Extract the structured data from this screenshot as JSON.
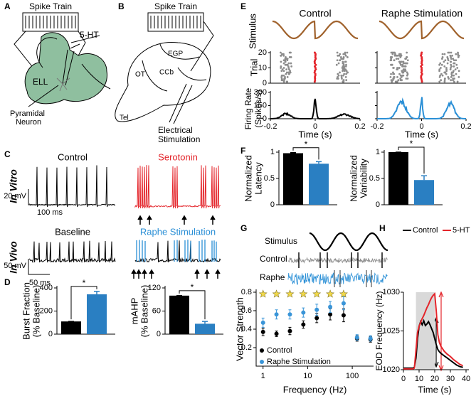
{
  "figure": {
    "A": {
      "label": "A",
      "spike_train": "Spike Train",
      "drug": "5-HT",
      "region": "ELL",
      "neuron": [
        "Pyramidal",
        "Neuron"
      ]
    },
    "B": {
      "label": "B",
      "spike_train": "Spike Train",
      "regions": [
        "EGP",
        "OT",
        "CCb",
        "Tel"
      ],
      "stimulation": [
        "Electrical",
        "Stimulation"
      ]
    },
    "C": {
      "label": "C",
      "in_vitro": "In Vitro",
      "in_vivo": "In Vivo",
      "control": "Control",
      "serotonin": "Serotonin",
      "baseline": "Baseline",
      "raphe": "Raphe Stimulation",
      "scale_vitro": [
        "20 mV",
        "100 ms"
      ],
      "scale_vivo": [
        "50 mV",
        "50 ms"
      ]
    },
    "D": {
      "label": "D"
    },
    "E": {
      "label": "E",
      "control": "Control",
      "raphe": "Raphe Stimulation",
      "stimulus": "Stimulus",
      "trial": "Trial",
      "rate": [
        "Firing Rate",
        "(Spikes/s)"
      ],
      "time": "Time (s)",
      "trial_ticks": [
        0,
        10,
        20
      ],
      "rate_ticks": [
        0,
        150,
        300
      ],
      "time_ticks": [
        -0.2,
        0,
        0.2
      ]
    },
    "F": {
      "label": "F"
    },
    "G": {
      "label": "G",
      "stimulus": "Stimulus",
      "control": "Control",
      "raphe": "Raphe"
    },
    "H": {
      "label": "H"
    }
  },
  "chart_data": [
    {
      "type": "bar",
      "ylabel": [
        "Burst Fraction",
        "(% Baseline)"
      ],
      "values": [
        110,
        345
      ],
      "errors": [
        0,
        25
      ],
      "colors": [
        "#000000",
        "#2a7fc2"
      ],
      "ylim": [
        0,
        400
      ],
      "yticks": [
        0,
        200,
        400
      ],
      "annotation": "*"
    },
    {
      "type": "bar",
      "ylabel": [
        "mAHP",
        "(% Baseline)"
      ],
      "values": [
        100,
        27
      ],
      "errors": [
        0,
        6
      ],
      "colors": [
        "#000000",
        "#2a7fc2"
      ],
      "ylim": [
        0,
        120
      ],
      "yticks": [
        0,
        60,
        120
      ],
      "annotation": "*"
    },
    {
      "type": "bar",
      "ylabel": [
        "Normalized",
        "Latency"
      ],
      "values": [
        0.98,
        0.78
      ],
      "errors": [
        0.01,
        0.04
      ],
      "colors": [
        "#000000",
        "#2a7fc2"
      ],
      "ylim": [
        0,
        1
      ],
      "yticks": [
        0,
        0.5,
        1
      ],
      "annotation": "*"
    },
    {
      "type": "bar",
      "ylabel": [
        "Normalized",
        "Variability"
      ],
      "values": [
        1.0,
        0.47
      ],
      "errors": [
        0,
        0.08
      ],
      "colors": [
        "#000000",
        "#2a7fc2"
      ],
      "ylim": [
        0,
        1
      ],
      "yticks": [
        0,
        0.5,
        1
      ],
      "annotation": "*"
    },
    {
      "type": "scatter",
      "ylabel": "Vector Strength",
      "xlabel": "Frequency (Hz)",
      "log_x": true,
      "x": [
        1,
        2,
        4,
        8,
        16,
        32,
        64,
        128,
        256
      ],
      "series": [
        {
          "name": "Control",
          "color": "#000000",
          "values": [
            0.37,
            0.35,
            0.38,
            0.45,
            0.52,
            0.56,
            0.55,
            0.3,
            0.29
          ],
          "errors": [
            0.04,
            0.03,
            0.04,
            0.04,
            0.05,
            0.06,
            0.07,
            0.03,
            0.03
          ]
        },
        {
          "name": "Raphe Stimulation",
          "color": "#3a95d8",
          "values": [
            0.47,
            0.56,
            0.56,
            0.58,
            0.61,
            0.64,
            0.68,
            0.31,
            0.3
          ],
          "errors": [
            0.05,
            0.05,
            0.05,
            0.05,
            0.06,
            0.06,
            0.07,
            0.03,
            0.03
          ]
        }
      ],
      "significance": {
        "color": "#f0d84a",
        "y": 0.78,
        "x": [
          1,
          2,
          4,
          8,
          16,
          32,
          64
        ]
      },
      "xlim": [
        0.7,
        300
      ],
      "xticks": [
        1,
        10,
        100
      ],
      "ylim": [
        0,
        0.8
      ],
      "yticks": [
        0.2,
        0.4,
        0.6,
        0.8
      ],
      "legend": "lower left"
    },
    {
      "type": "line",
      "ylabel": "EOD Frequency (Hz)",
      "xlabel": "Time (s)",
      "x": [
        0,
        2,
        4,
        6,
        7,
        8,
        9,
        10,
        11,
        12,
        13,
        14,
        15,
        16,
        17,
        18,
        19,
        20,
        21,
        22,
        23,
        24,
        26,
        28,
        30,
        32,
        34,
        36,
        38
      ],
      "series": [
        {
          "name": "Control",
          "color": "#000000",
          "values": [
            1020.2,
            1020.2,
            1020.2,
            1020.2,
            1020.3,
            1021.5,
            1024,
            1025.6,
            1026.2,
            1025.8,
            1026.3,
            1025.7,
            1025.9,
            1026.2,
            1025.8,
            1025.3,
            1024.8,
            1024,
            1023.2,
            1022.6,
            1022.3,
            1022.1,
            1021.8,
            1021.5,
            1021.2,
            1020.9,
            1020.6,
            1020.4,
            1020.3
          ]
        },
        {
          "name": "5-HT",
          "color": "#e4252b",
          "values": [
            1020.1,
            1020.1,
            1020.1,
            1020.1,
            1020.2,
            1022.5,
            1024.8,
            1025.6,
            1026.1,
            1026.6,
            1027,
            1027.5,
            1028,
            1028.4,
            1028.9,
            1029.3,
            1029.6,
            1029.8,
            1027.5,
            1024.5,
            1023.5,
            1023,
            1022.4,
            1022,
            1021.7,
            1021.3,
            1021,
            1020.7,
            1020.5
          ]
        }
      ],
      "shaded_region": [
        8,
        20
      ],
      "xlim": [
        0,
        40
      ],
      "xticks": [
        0,
        10,
        20,
        30,
        40
      ],
      "ylim": [
        1020,
        1030
      ],
      "yticks": [
        1020,
        1025,
        1030
      ],
      "legend": "top"
    }
  ]
}
